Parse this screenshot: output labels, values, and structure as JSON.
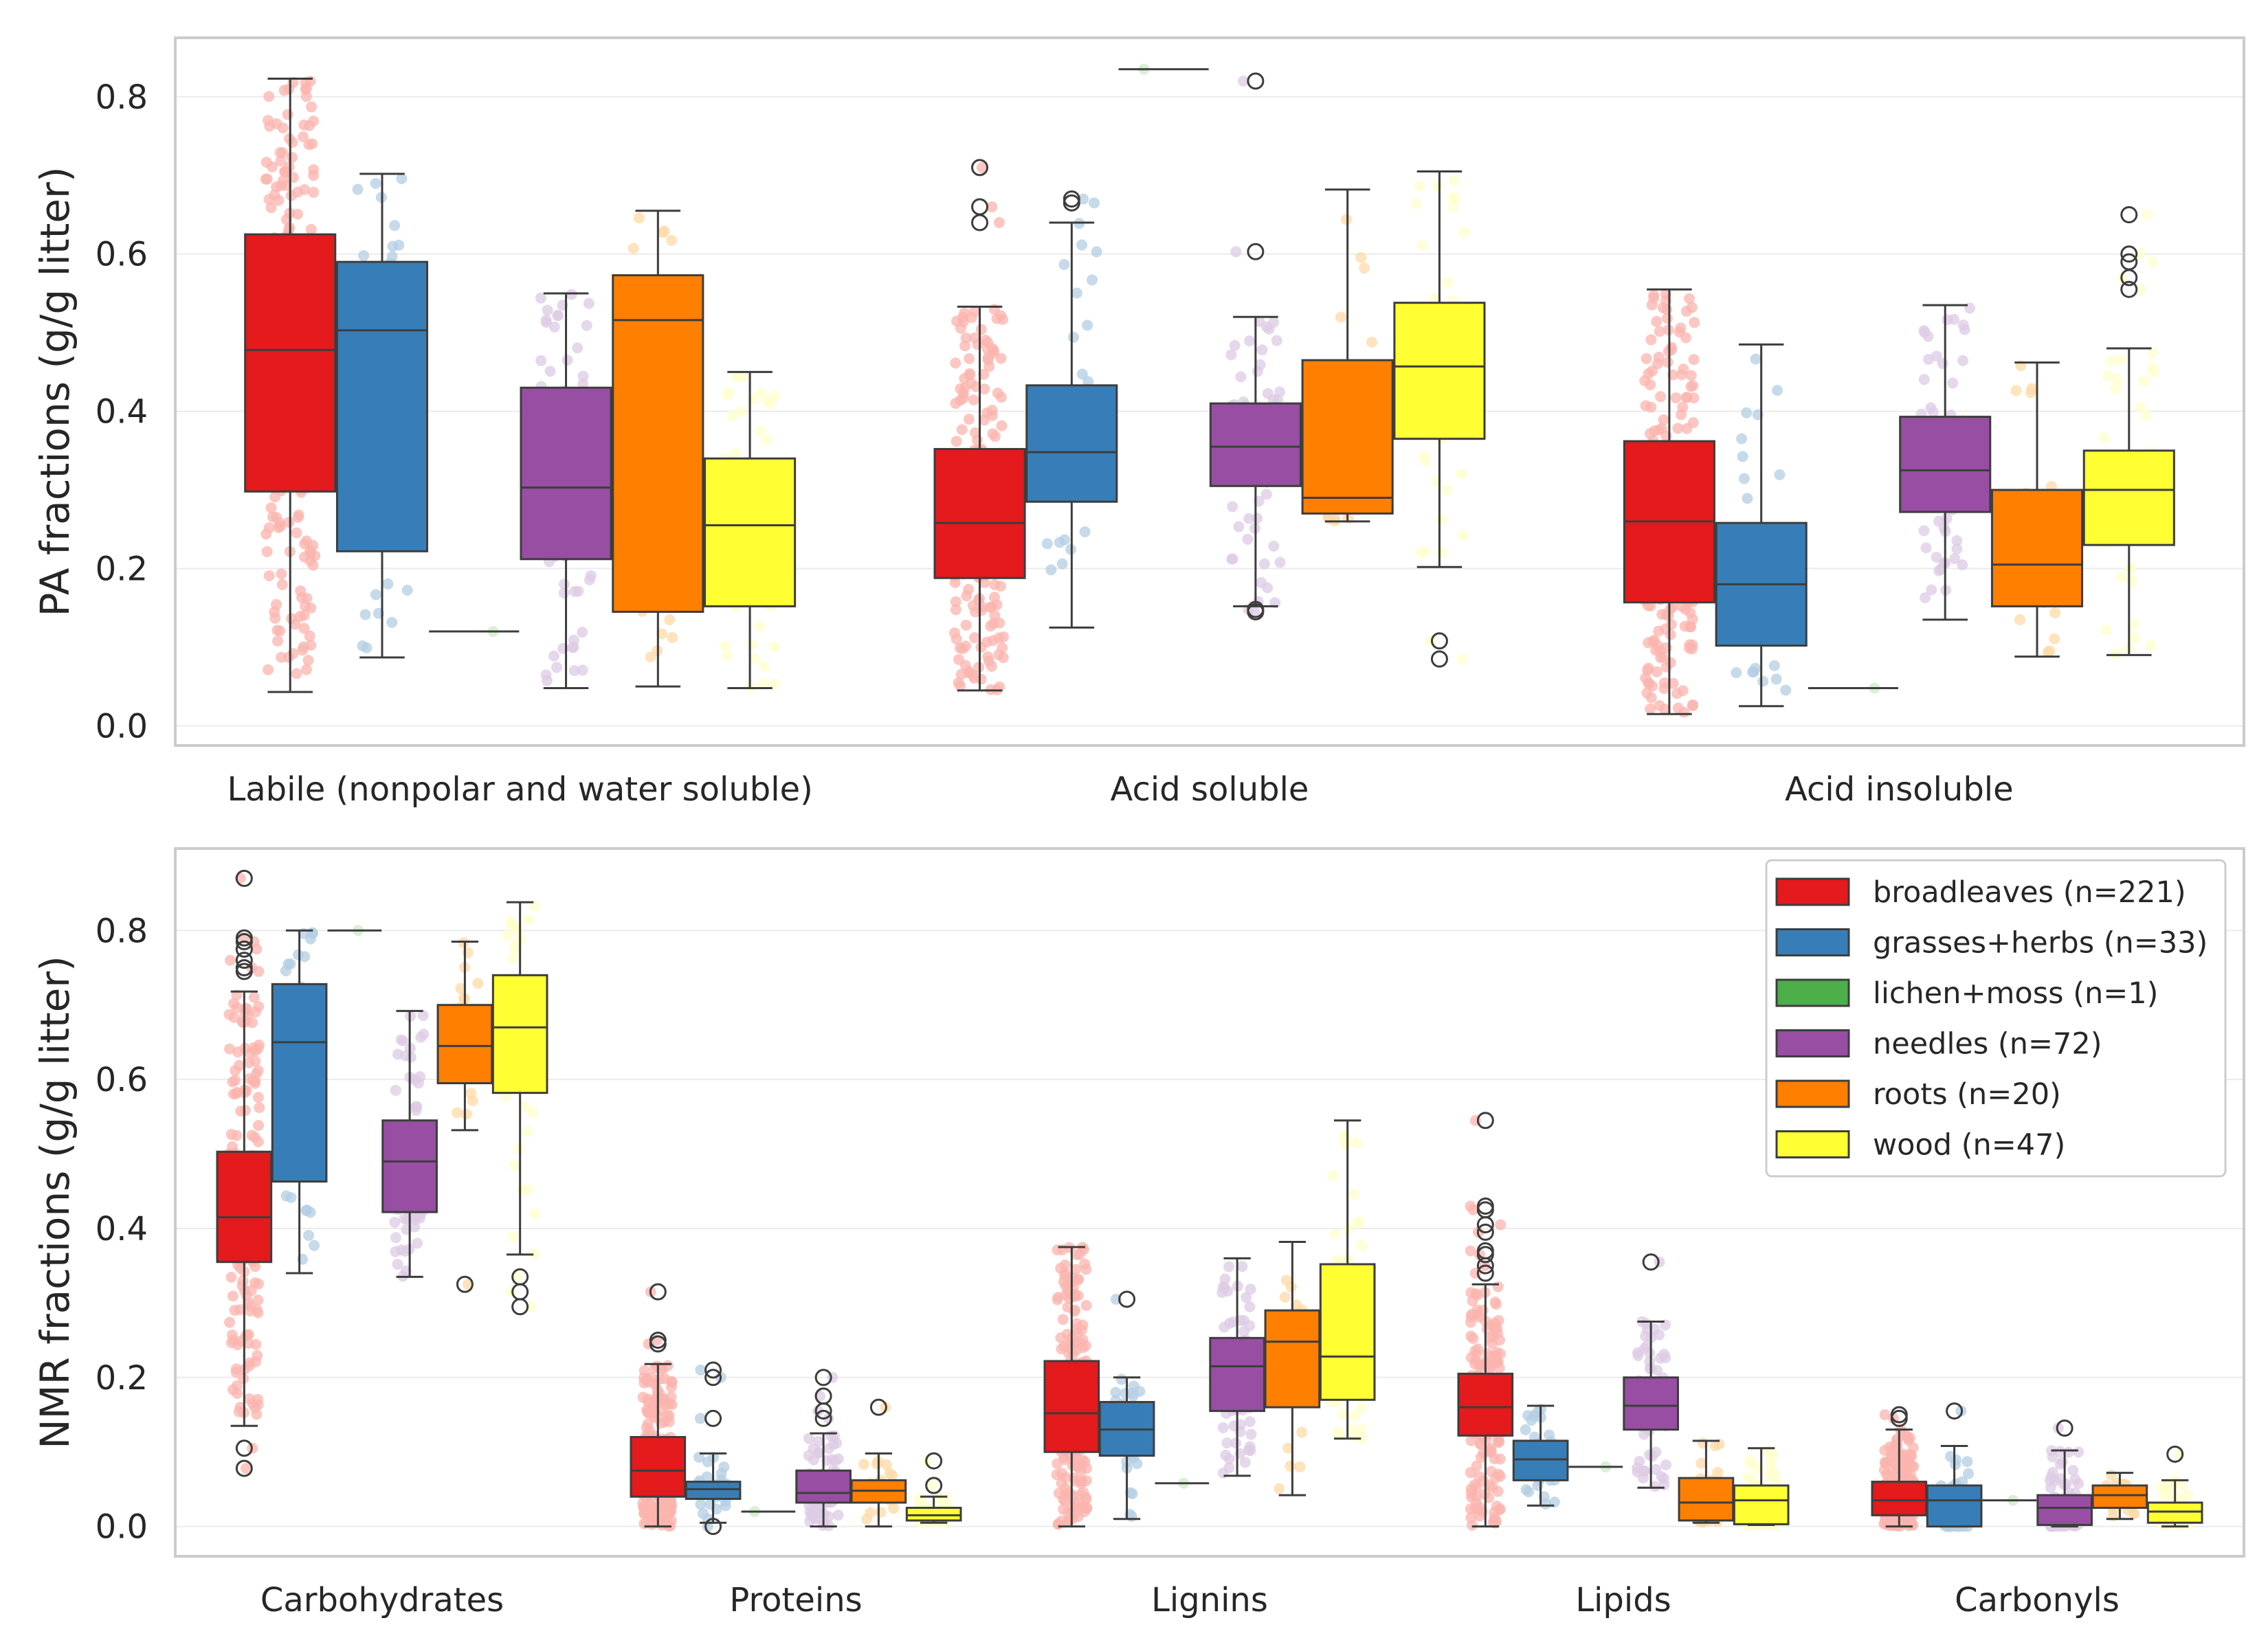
{
  "legend": [
    {
      "name": "broadleaves (n=221)",
      "color": "#e41a1c",
      "light": "#fbb4ae"
    },
    {
      "name": "grasses+herbs (n=33)",
      "color": "#377eb8",
      "light": "#b3cde3"
    },
    {
      "name": "lichen+moss (n=1)",
      "color": "#4daf4a",
      "light": "#ccebc5"
    },
    {
      "name": "needles (n=72)",
      "color": "#984ea3",
      "light": "#decbe4"
    },
    {
      "name": "roots (n=20)",
      "color": "#ff7f00",
      "light": "#fed9a6"
    },
    {
      "name": "wood (n=47)",
      "color": "#ffff33",
      "light": "#ffffcc"
    }
  ],
  "chart_data": [
    {
      "type": "box",
      "ylabel": "PA fractions (g/g litter)",
      "ylim": [
        -0.025,
        0.875
      ],
      "yticks": [
        0.0,
        0.2,
        0.4,
        0.6,
        0.8
      ],
      "ytick_labels": [
        "0.0",
        "0.2",
        "0.4",
        "0.6",
        "0.8"
      ],
      "grid": true,
      "legend_position": "none",
      "categories": [
        "Labile (nonpolar and water soluble)",
        "Acid soluble",
        "Acid insoluble"
      ],
      "series": [
        {
          "name": "broadleaves (n=221)",
          "n": 221,
          "boxes": [
            {
              "whislo": 0.043,
              "q1": 0.298,
              "med": 0.478,
              "q3": 0.625,
              "whishi": 0.823,
              "fliers": []
            },
            {
              "whislo": 0.045,
              "q1": 0.188,
              "med": 0.258,
              "q3": 0.352,
              "whishi": 0.533,
              "fliers": [
                0.64,
                0.66,
                0.71
              ]
            },
            {
              "whislo": 0.015,
              "q1": 0.157,
              "med": 0.26,
              "q3": 0.362,
              "whishi": 0.555,
              "fliers": []
            }
          ]
        },
        {
          "name": "grasses+herbs (n=33)",
          "n": 33,
          "boxes": [
            {
              "whislo": 0.087,
              "q1": 0.222,
              "med": 0.503,
              "q3": 0.59,
              "whishi": 0.702,
              "fliers": []
            },
            {
              "whislo": 0.125,
              "q1": 0.285,
              "med": 0.348,
              "q3": 0.433,
              "whishi": 0.64,
              "fliers": [
                0.665,
                0.67
              ]
            },
            {
              "whislo": 0.025,
              "q1": 0.102,
              "med": 0.18,
              "q3": 0.258,
              "whishi": 0.485,
              "fliers": []
            }
          ]
        },
        {
          "name": "lichen+moss (n=1)",
          "n": 1,
          "boxes": [
            {
              "whislo": 0.12,
              "q1": 0.12,
              "med": 0.12,
              "q3": 0.12,
              "whishi": 0.12,
              "fliers": []
            },
            {
              "whislo": 0.835,
              "q1": 0.835,
              "med": 0.835,
              "q3": 0.835,
              "whishi": 0.835,
              "fliers": []
            },
            {
              "whislo": 0.048,
              "q1": 0.048,
              "med": 0.048,
              "q3": 0.048,
              "whishi": 0.048,
              "fliers": []
            }
          ]
        },
        {
          "name": "needles (n=72)",
          "n": 72,
          "boxes": [
            {
              "whislo": 0.048,
              "q1": 0.212,
              "med": 0.303,
              "q3": 0.43,
              "whishi": 0.55,
              "fliers": []
            },
            {
              "whislo": 0.152,
              "q1": 0.305,
              "med": 0.355,
              "q3": 0.41,
              "whishi": 0.52,
              "fliers": [
                0.145,
                0.148,
                0.603,
                0.82
              ]
            },
            {
              "whislo": 0.135,
              "q1": 0.272,
              "med": 0.325,
              "q3": 0.393,
              "whishi": 0.535,
              "fliers": []
            }
          ]
        },
        {
          "name": "roots (n=20)",
          "n": 20,
          "boxes": [
            {
              "whislo": 0.05,
              "q1": 0.145,
              "med": 0.516,
              "q3": 0.573,
              "whishi": 0.655,
              "fliers": []
            },
            {
              "whislo": 0.26,
              "q1": 0.27,
              "med": 0.29,
              "q3": 0.465,
              "whishi": 0.682,
              "fliers": []
            },
            {
              "whislo": 0.088,
              "q1": 0.152,
              "med": 0.205,
              "q3": 0.3,
              "whishi": 0.462,
              "fliers": []
            }
          ]
        },
        {
          "name": "wood (n=47)",
          "n": 47,
          "boxes": [
            {
              "whislo": 0.048,
              "q1": 0.152,
              "med": 0.255,
              "q3": 0.34,
              "whishi": 0.45,
              "fliers": []
            },
            {
              "whislo": 0.202,
              "q1": 0.365,
              "med": 0.457,
              "q3": 0.538,
              "whishi": 0.705,
              "fliers": [
                0.085,
                0.108
              ]
            },
            {
              "whislo": 0.09,
              "q1": 0.23,
              "med": 0.3,
              "q3": 0.35,
              "whishi": 0.48,
              "fliers": [
                0.555,
                0.57,
                0.59,
                0.6,
                0.65
              ]
            }
          ]
        }
      ]
    },
    {
      "type": "box",
      "ylabel": "NMR fractions (g/g litter)",
      "ylim": [
        -0.04,
        0.91
      ],
      "yticks": [
        0.0,
        0.2,
        0.4,
        0.6,
        0.8
      ],
      "ytick_labels": [
        "0.0",
        "0.2",
        "0.4",
        "0.6",
        "0.8"
      ],
      "grid": true,
      "legend_position": "top-right",
      "categories": [
        "Carbohydrates",
        "Proteins",
        "Lignins",
        "Lipids",
        "Carbonyls"
      ],
      "series": [
        {
          "name": "broadleaves (n=221)",
          "n": 221,
          "boxes": [
            {
              "whislo": 0.135,
              "q1": 0.355,
              "med": 0.415,
              "q3": 0.503,
              "whishi": 0.718,
              "fliers": [
                0.078,
                0.105,
                0.745,
                0.75,
                0.76,
                0.775,
                0.785,
                0.79,
                0.87
              ]
            },
            {
              "whislo": 0.0,
              "q1": 0.04,
              "med": 0.075,
              "q3": 0.12,
              "whishi": 0.218,
              "fliers": [
                0.245,
                0.25,
                0.315
              ]
            },
            {
              "whislo": 0.0,
              "q1": 0.1,
              "med": 0.152,
              "q3": 0.222,
              "whishi": 0.375,
              "fliers": []
            },
            {
              "whislo": 0.0,
              "q1": 0.122,
              "med": 0.16,
              "q3": 0.205,
              "whishi": 0.325,
              "fliers": [
                0.34,
                0.35,
                0.365,
                0.37,
                0.395,
                0.405,
                0.425,
                0.43,
                0.545
              ]
            },
            {
              "whislo": 0.0,
              "q1": 0.015,
              "med": 0.035,
              "q3": 0.06,
              "whishi": 0.13,
              "fliers": [
                0.145,
                0.15
              ]
            }
          ]
        },
        {
          "name": "grasses+herbs (n=33)",
          "n": 33,
          "boxes": [
            {
              "whislo": 0.34,
              "q1": 0.463,
              "med": 0.65,
              "q3": 0.728,
              "whishi": 0.8,
              "fliers": []
            },
            {
              "whislo": 0.005,
              "q1": 0.037,
              "med": 0.05,
              "q3": 0.06,
              "whishi": 0.098,
              "fliers": [
                0.0,
                0.145,
                0.2,
                0.21
              ]
            },
            {
              "whislo": 0.01,
              "q1": 0.095,
              "med": 0.13,
              "q3": 0.167,
              "whishi": 0.2,
              "fliers": [
                0.305
              ]
            },
            {
              "whislo": 0.028,
              "q1": 0.062,
              "med": 0.09,
              "q3": 0.115,
              "whishi": 0.162,
              "fliers": []
            },
            {
              "whislo": 0.0,
              "q1": 0.0,
              "med": 0.035,
              "q3": 0.055,
              "whishi": 0.108,
              "fliers": [
                0.155
              ]
            }
          ]
        },
        {
          "name": "lichen+moss (n=1)",
          "n": 1,
          "boxes": [
            {
              "whislo": 0.8,
              "q1": 0.8,
              "med": 0.8,
              "q3": 0.8,
              "whishi": 0.8,
              "fliers": []
            },
            {
              "whislo": 0.02,
              "q1": 0.02,
              "med": 0.02,
              "q3": 0.02,
              "whishi": 0.02,
              "fliers": []
            },
            {
              "whislo": 0.058,
              "q1": 0.058,
              "med": 0.058,
              "q3": 0.058,
              "whishi": 0.058,
              "fliers": []
            },
            {
              "whislo": 0.08,
              "q1": 0.08,
              "med": 0.08,
              "q3": 0.08,
              "whishi": 0.08,
              "fliers": []
            },
            {
              "whislo": 0.035,
              "q1": 0.035,
              "med": 0.035,
              "q3": 0.035,
              "whishi": 0.035,
              "fliers": []
            }
          ]
        },
        {
          "name": "needles (n=72)",
          "n": 72,
          "boxes": [
            {
              "whislo": 0.335,
              "q1": 0.422,
              "med": 0.49,
              "q3": 0.545,
              "whishi": 0.692,
              "fliers": []
            },
            {
              "whislo": 0.0,
              "q1": 0.032,
              "med": 0.045,
              "q3": 0.075,
              "whishi": 0.125,
              "fliers": [
                0.145,
                0.155,
                0.175,
                0.2
              ]
            },
            {
              "whislo": 0.068,
              "q1": 0.155,
              "med": 0.215,
              "q3": 0.253,
              "whishi": 0.36,
              "fliers": []
            },
            {
              "whislo": 0.052,
              "q1": 0.13,
              "med": 0.162,
              "q3": 0.2,
              "whishi": 0.275,
              "fliers": [
                0.355
              ]
            },
            {
              "whislo": 0.0,
              "q1": 0.002,
              "med": 0.025,
              "q3": 0.042,
              "whishi": 0.102,
              "fliers": [
                0.132
              ]
            }
          ]
        },
        {
          "name": "roots (n=20)",
          "n": 20,
          "boxes": [
            {
              "whislo": 0.532,
              "q1": 0.595,
              "med": 0.645,
              "q3": 0.7,
              "whishi": 0.785,
              "fliers": [
                0.325
              ]
            },
            {
              "whislo": 0.0,
              "q1": 0.032,
              "med": 0.048,
              "q3": 0.062,
              "whishi": 0.098,
              "fliers": [
                0.16
              ]
            },
            {
              "whislo": 0.042,
              "q1": 0.16,
              "med": 0.248,
              "q3": 0.29,
              "whishi": 0.382,
              "fliers": []
            },
            {
              "whislo": 0.005,
              "q1": 0.008,
              "med": 0.032,
              "q3": 0.065,
              "whishi": 0.115,
              "fliers": []
            },
            {
              "whislo": 0.01,
              "q1": 0.025,
              "med": 0.042,
              "q3": 0.055,
              "whishi": 0.072,
              "fliers": []
            }
          ]
        },
        {
          "name": "wood (n=47)",
          "n": 47,
          "boxes": [
            {
              "whislo": 0.365,
              "q1": 0.582,
              "med": 0.67,
              "q3": 0.74,
              "whishi": 0.838,
              "fliers": [
                0.295,
                0.315,
                0.335
              ]
            },
            {
              "whislo": 0.005,
              "q1": 0.008,
              "med": 0.015,
              "q3": 0.025,
              "whishi": 0.04,
              "fliers": [
                0.055,
                0.088
              ]
            },
            {
              "whislo": 0.118,
              "q1": 0.17,
              "med": 0.228,
              "q3": 0.352,
              "whishi": 0.545,
              "fliers": []
            },
            {
              "whislo": 0.002,
              "q1": 0.003,
              "med": 0.035,
              "q3": 0.055,
              "whishi": 0.105,
              "fliers": []
            },
            {
              "whislo": 0.0,
              "q1": 0.005,
              "med": 0.02,
              "q3": 0.032,
              "whishi": 0.062,
              "fliers": [
                0.097
              ]
            }
          ]
        }
      ]
    }
  ]
}
